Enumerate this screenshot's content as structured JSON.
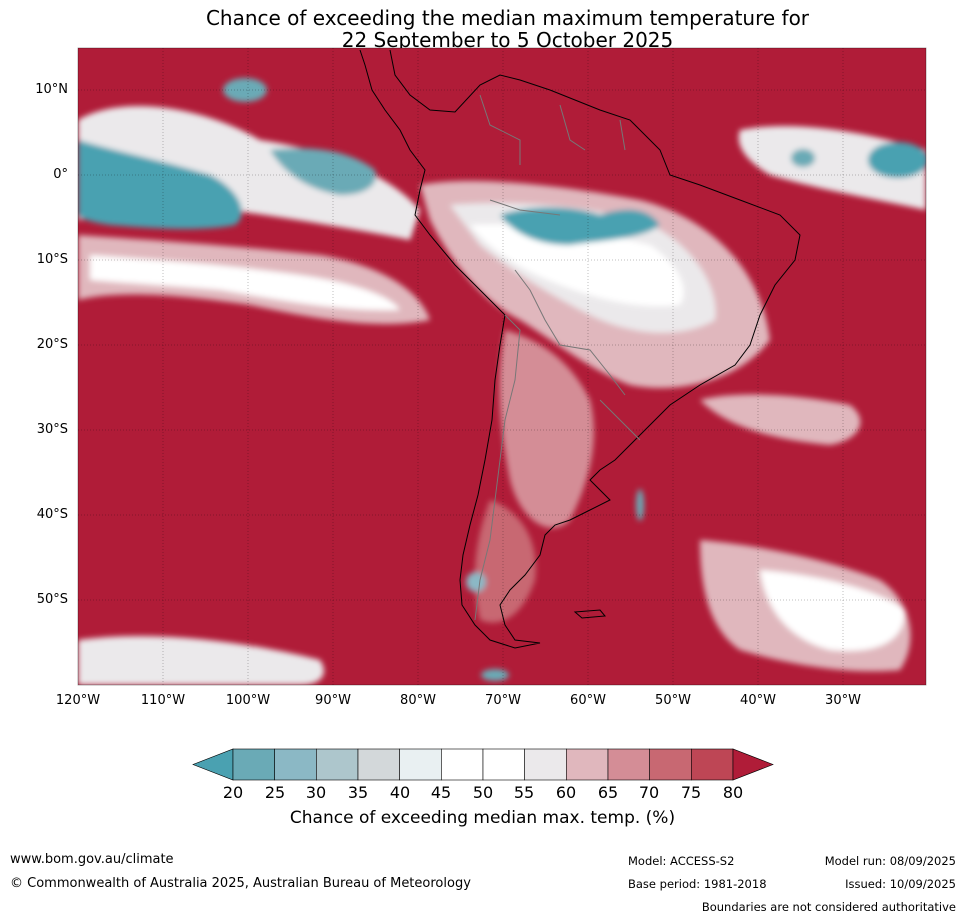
{
  "title": {
    "line1": "Chance of exceeding the median maximum temperature for",
    "line2": "22 September to 5 October 2025"
  },
  "axes": {
    "lat_labels": [
      "10°N",
      "0°",
      "10°S",
      "20°S",
      "30°S",
      "40°S",
      "50°S"
    ],
    "lon_labels": [
      "120°W",
      "110°W",
      "100°W",
      "90°W",
      "80°W",
      "70°W",
      "60°W",
      "50°W",
      "40°W",
      "30°W"
    ]
  },
  "colorbar": {
    "ticks": [
      "20",
      "25",
      "30",
      "35",
      "40",
      "45",
      "50",
      "55",
      "60",
      "65",
      "70",
      "75",
      "80"
    ],
    "colors": [
      "#4aa1b1",
      "#6aaab6",
      "#8bb8c5",
      "#adc6cc",
      "#d3d8da",
      "#e9f0f2",
      "#ffffff",
      "#ffffff",
      "#ebe9eb",
      "#e0b7bd",
      "#d48d96",
      "#c86872",
      "#be4655",
      "#b01c38"
    ],
    "label": "Chance of exceeding median max. temp. (%)"
  },
  "footer": {
    "website": "www.bom.gov.au/climate",
    "copyright": "© Commonwealth of Australia 2025, Australian Bureau of Meteorology",
    "model": "Model: ACCESS-S2",
    "base_period": "Base period: 1981-2018",
    "model_run": "Model run: 08/09/2025",
    "issued": "Issued: 10/09/2025",
    "disclaimer": "Boundaries are not considered authoritative"
  }
}
